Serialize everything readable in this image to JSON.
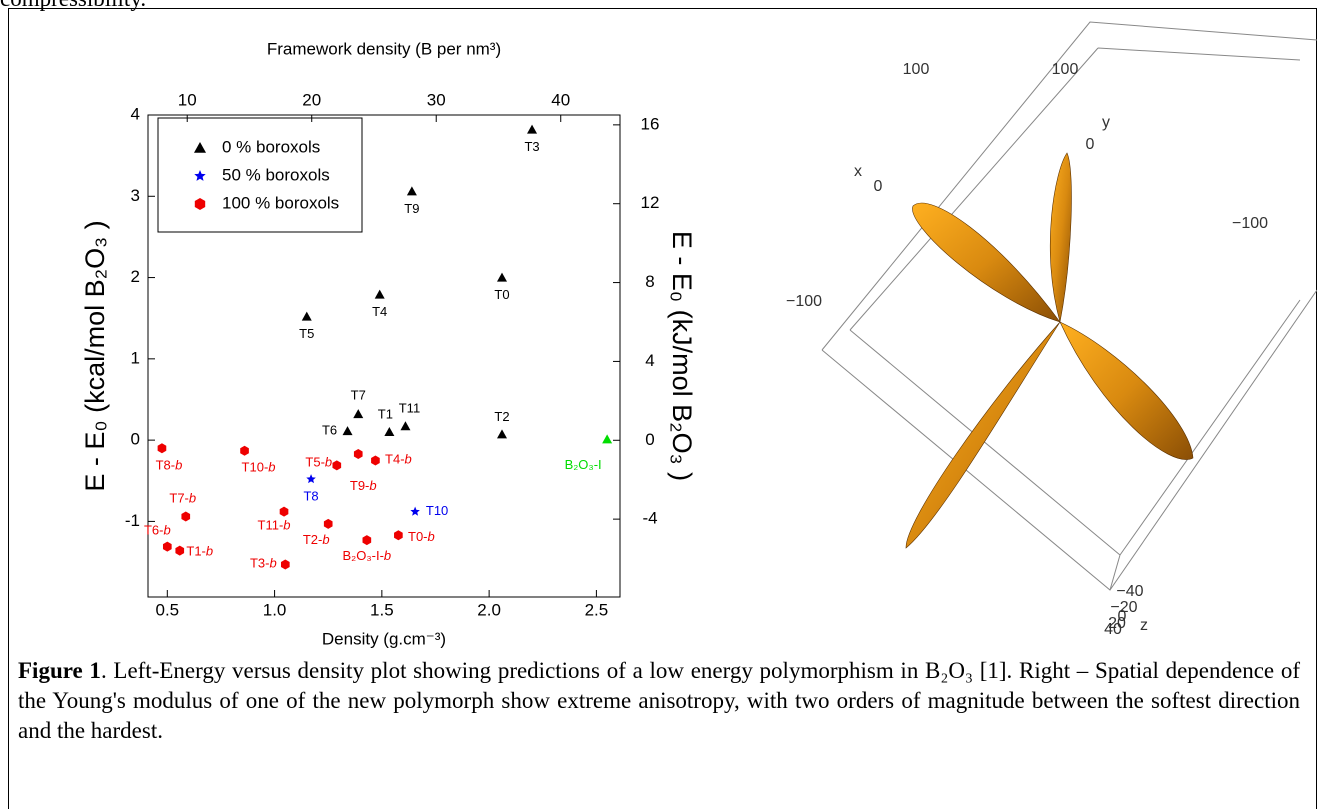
{
  "header_fragment": "compressibility.",
  "chart_data": {
    "type": "scatter",
    "xlabel": "Density (g.cm⁻³)",
    "ylabel": "E - E₀ (kcal/mol B₂O₃ )",
    "x2label": "Framework density (B per nm³)",
    "y2label": "E - E₀ (kJ/mol B₂O₃ )",
    "xlim": [
      0.41,
      2.61
    ],
    "xticks": [
      0.5,
      {
        "value": 1,
        "label": "1.0"
      },
      1.5,
      {
        "value": 2,
        "label": "2.0"
      },
      2.5
    ],
    "ylim": [
      -1.93,
      4
    ],
    "yticks": [
      -1,
      0,
      1,
      2,
      3,
      4
    ],
    "x2lim": [
      6.85,
      44.76
    ],
    "x2ticks": [
      10,
      20,
      30,
      40
    ],
    "y2lim": [
      -7.95,
      16.5
    ],
    "y2ticks": [
      -4,
      0,
      4,
      8,
      12,
      16
    ],
    "legend": "upper left",
    "series": [
      {
        "name": "0 % boroxols",
        "color": "#000000",
        "marker": "triangle",
        "x": [
          2.2,
          1.64,
          2.06,
          1.49,
          1.15,
          1.39,
          1.34,
          1.535,
          1.61,
          2.06
        ],
        "values": [
          3.82,
          3.06,
          2.0,
          1.79,
          1.52,
          0.32,
          0.11,
          0.1,
          0.17,
          0.07
        ],
        "labels": [
          "T3",
          "T9",
          "T0",
          "T4",
          "T5",
          "T7",
          "T6",
          "T1",
          "T11",
          "T2"
        ]
      },
      {
        "name": "50 % boroxols",
        "color": "#0000ee",
        "marker": "star",
        "x": [
          1.17,
          1.655
        ],
        "values": [
          -0.48,
          -0.88
        ],
        "labels": [
          "T8",
          "T10"
        ]
      },
      {
        "name": "100 % boroxols",
        "color": "#ee0000",
        "marker": "hexagon",
        "x": [
          0.475,
          0.86,
          1.29,
          1.39,
          1.47,
          0.586,
          0.5,
          0.558,
          1.044,
          1.25,
          1.05,
          1.43,
          1.577
        ],
        "values": [
          -0.1,
          -0.13,
          -0.31,
          -0.17,
          -0.25,
          -0.94,
          -1.31,
          -1.36,
          -0.88,
          -1.03,
          -1.53,
          -1.23,
          -1.17
        ],
        "labels": [
          "T8-b",
          "T10-b",
          "T5-b",
          "T9-b",
          "T4-b",
          "T7-b",
          "T6-b",
          "T1-b",
          "T11-b",
          "T2-b",
          "T3-b",
          "B₂O₃-I-b",
          "T0-b"
        ]
      }
    ],
    "reference_point": {
      "label": "B₂O₃-I",
      "x": 2.55,
      "value": 0.01,
      "color": "#00dd00",
      "marker": "triangle"
    }
  },
  "right_plot": {
    "labels": [
      "100",
      "100",
      "0",
      "y",
      "x",
      "0",
      "−100",
      "−100",
      "−40",
      "−20",
      "0",
      "20",
      "40",
      "z"
    ]
  },
  "caption": {
    "label": "Figure 1",
    "text": ". Left-Energy versus density plot showing predictions of a low energy polymorphism in B₂O₃ [1]. Right – Spatial dependence of the Young's modulus of one of the new polymorph show extreme anisotropy, with two orders of magnitude between the softest direction and the hardest."
  }
}
